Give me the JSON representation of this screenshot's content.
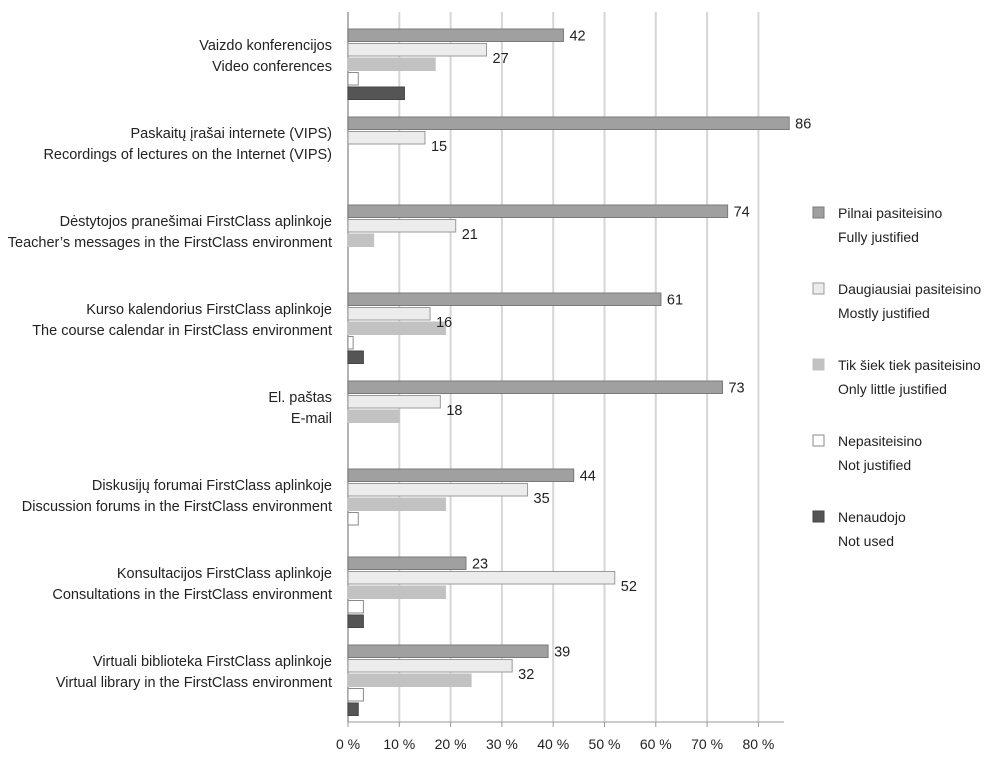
{
  "chart_data": {
    "type": "bar",
    "orientation": "horizontal",
    "categories": [
      [
        "Vaizdo konferencijos",
        "Video conferences"
      ],
      [
        "Paskaitų įrašai internete (VIPS)",
        "Recordings of lectures on the Internet (VIPS)"
      ],
      [
        "Dėstytojos pranešimai FirstClass aplinkoje",
        "Teacher’s messages in  the FirstClass environment"
      ],
      [
        "Kurso kalendorius FirstClass aplinkoje",
        "The course calendar in  FirstClass environment"
      ],
      [
        "El. paštas",
        "E-mail"
      ],
      [
        "Diskusijų forumai FirstClass aplinkoje",
        "Discussion forums in the FirstClass environment"
      ],
      [
        "Konsultacijos FirstClass aplinkoje",
        "Consultations in the FirstClass environment"
      ],
      [
        "Virtuali biblioteka FirstClass aplinkoje",
        "Virtual library in the FirstClass environment"
      ]
    ],
    "series": [
      {
        "name": [
          "Pilnai pasiteisino",
          "Fully justified"
        ],
        "color": "#a0a0a0",
        "stroke": "#7a7a7a",
        "values": [
          42,
          86,
          74,
          61,
          73,
          44,
          23,
          39
        ],
        "labels": [
          "42",
          "86",
          "74",
          "61",
          "73",
          "44",
          "23",
          "39"
        ]
      },
      {
        "name": [
          "Daugiausiai pasiteisino",
          "Mostly justified"
        ],
        "color": "#ececec",
        "stroke": "#9a9a9a",
        "values": [
          27,
          15,
          21,
          16,
          18,
          35,
          52,
          32
        ],
        "labels": [
          "27",
          "15",
          "21",
          "16",
          "18",
          "35",
          "52",
          "32"
        ]
      },
      {
        "name": [
          "Tik šiek tiek pasiteisino",
          "Only little justified"
        ],
        "color": "#c2c2c2",
        "stroke": "#c2c2c2",
        "values": [
          17,
          0,
          5,
          19,
          10,
          19,
          19,
          24
        ],
        "labels": [
          null,
          null,
          null,
          null,
          null,
          null,
          null,
          null
        ]
      },
      {
        "name": [
          "Nepasiteisino",
          "Not justified"
        ],
        "color": "#ffffff",
        "stroke": "#8a8a8a",
        "values": [
          2,
          0,
          0,
          1,
          0,
          2,
          3,
          3
        ],
        "labels": [
          null,
          null,
          null,
          null,
          null,
          null,
          null,
          null
        ]
      },
      {
        "name": [
          "Nenaudojo",
          "Not used"
        ],
        "color": "#555555",
        "stroke": "#444444",
        "values": [
          11,
          0,
          0,
          3,
          0,
          0,
          3,
          2
        ],
        "labels": [
          null,
          null,
          null,
          null,
          null,
          null,
          null,
          null
        ]
      }
    ],
    "xlim": [
      0,
      85
    ],
    "xticks": [
      0,
      10,
      20,
      30,
      40,
      50,
      60,
      70,
      80
    ],
    "xtick_labels": [
      "0 %",
      "10 %",
      "20 %",
      "30 %",
      "40 %",
      "50 %",
      "60 %",
      "70 %",
      "80 %"
    ],
    "grid": true,
    "legend_position": "right"
  }
}
